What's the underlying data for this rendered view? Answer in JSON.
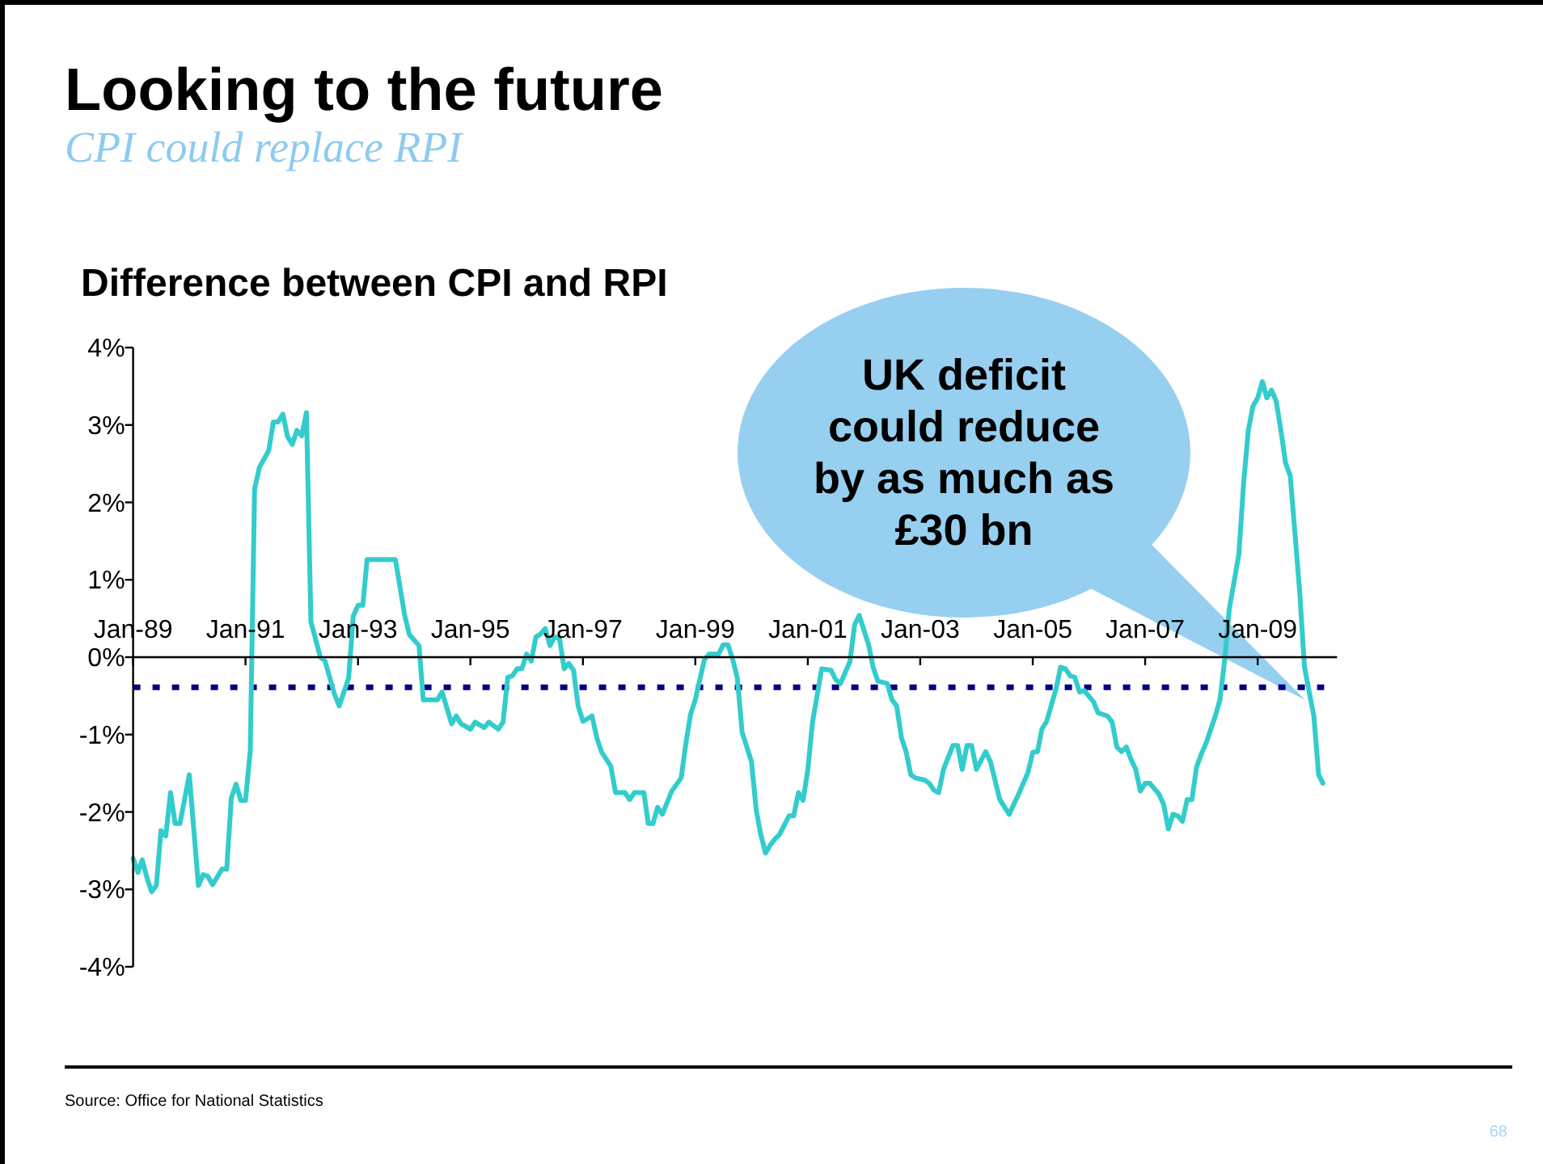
{
  "chart_data": {
    "type": "line",
    "title": "Looking to the future",
    "subtitle": "CPI could replace RPI",
    "ylabel": "Difference between CPI and RPI",
    "annotations": [
      "UK deficit could reduce by as much as £30 bn",
      "Source: Office for National Statistics",
      "68"
    ],
    "x": [
      "1989-01",
      "1989-02",
      "1989-03",
      "1989-04",
      "1989-05",
      "1989-06",
      "1989-07",
      "1989-08",
      "1989-09",
      "1989-10",
      "1989-11",
      "1990-01",
      "1990-03",
      "1990-04",
      "1990-05",
      "1990-06",
      "1990-08",
      "1990-09",
      "1990-10",
      "1990-11",
      "1990-12",
      "1991-01",
      "1991-02",
      "1991-03",
      "1991-04",
      "1991-06",
      "1991-07",
      "1991-08",
      "1991-09",
      "1991-10",
      "1991-11",
      "1991-12",
      "1992-01",
      "1992-02",
      "1992-03",
      "1992-05",
      "1992-06",
      "1992-08",
      "1992-09",
      "1992-11",
      "1992-12",
      "1993-01",
      "1993-02",
      "1993-03",
      "1993-09",
      "1993-11",
      "1993-12",
      "1994-02",
      "1994-03",
      "1994-06",
      "1994-07",
      "1994-09",
      "1994-10",
      "1994-11",
      "1995-01",
      "1995-02",
      "1995-04",
      "1995-05",
      "1995-07",
      "1995-08",
      "1995-09",
      "1995-10",
      "1995-11",
      "1995-12",
      "1996-01",
      "1996-02",
      "1996-03",
      "1996-04",
      "1996-05",
      "1996-06",
      "1996-07",
      "1996-08",
      "1996-09",
      "1996-10",
      "1996-11",
      "1996-12",
      "1997-01",
      "1997-03",
      "1997-04",
      "1997-05",
      "1997-07",
      "1997-08",
      "1997-10",
      "1997-11",
      "1997-12",
      "1998-02",
      "1998-03",
      "1998-04",
      "1998-05",
      "1998-06",
      "1998-08",
      "1998-10",
      "1998-11",
      "1998-12",
      "1999-01",
      "1999-03",
      "1999-04",
      "1999-06",
      "1999-07",
      "1999-08",
      "1999-09",
      "1999-10",
      "1999-11",
      "2000-01",
      "2000-02",
      "2000-03",
      "2000-04",
      "2000-05",
      "2000-06",
      "2000-07",
      "2000-09",
      "2000-10",
      "2000-11",
      "2000-12",
      "2001-01",
      "2001-02",
      "2001-03",
      "2001-04",
      "2001-06",
      "2001-07",
      "2001-08",
      "2001-10",
      "2001-11",
      "2001-12",
      "2002-02",
      "2002-03",
      "2002-04",
      "2002-06",
      "2002-07",
      "2002-08",
      "2002-09",
      "2002-10",
      "2002-11",
      "2002-12",
      "2003-02",
      "2003-03",
      "2003-04",
      "2003-05",
      "2003-06",
      "2003-08",
      "2003-09",
      "2003-10",
      "2003-11",
      "2003-12",
      "2004-01",
      "2004-03",
      "2004-04",
      "2004-06",
      "2004-08",
      "2004-10",
      "2004-12",
      "2005-01",
      "2005-02",
      "2005-03",
      "2005-04",
      "2005-06",
      "2005-07",
      "2005-08",
      "2005-09",
      "2005-10",
      "2005-11",
      "2005-12",
      "2006-02",
      "2006-03",
      "2006-05",
      "2006-06",
      "2006-07",
      "2006-08",
      "2006-09",
      "2006-10",
      "2006-11",
      "2006-12",
      "2007-01",
      "2007-02",
      "2007-04",
      "2007-05",
      "2007-06",
      "2007-07",
      "2007-08",
      "2007-09",
      "2007-10",
      "2007-11",
      "2007-12",
      "2008-01",
      "2008-02",
      "2008-04",
      "2008-05",
      "2008-06",
      "2008-07",
      "2008-09",
      "2008-10",
      "2008-11",
      "2008-12",
      "2009-01",
      "2009-02",
      "2009-03",
      "2009-04",
      "2009-05",
      "2009-06",
      "2009-07",
      "2009-08",
      "2009-10",
      "2009-11",
      "2010-01",
      "2010-02",
      "2010-03"
    ],
    "series": [
      {
        "color": "#33cccc",
        "values": [
          -2.6,
          -2.78,
          -2.62,
          -2.85,
          -3.03,
          -2.95,
          -2.24,
          -2.31,
          -1.75,
          -2.15,
          -2.15,
          -1.52,
          -2.95,
          -2.81,
          -2.83,
          -2.94,
          -2.74,
          -2.74,
          -1.82,
          -1.64,
          -1.85,
          -1.85,
          -1.21,
          2.17,
          2.45,
          2.67,
          3.04,
          3.04,
          3.14,
          2.85,
          2.75,
          2.93,
          2.86,
          3.16,
          0.46,
          0.0,
          -0.05,
          -0.48,
          -0.63,
          -0.27,
          0.53,
          0.67,
          0.67,
          1.26,
          1.26,
          0.53,
          0.29,
          0.15,
          -0.55,
          -0.55,
          -0.45,
          -0.86,
          -0.76,
          -0.86,
          -0.93,
          -0.84,
          -0.91,
          -0.84,
          -0.93,
          -0.84,
          -0.26,
          -0.24,
          -0.15,
          -0.15,
          0.04,
          -0.05,
          0.26,
          0.3,
          0.37,
          0.15,
          0.26,
          0.25,
          -0.15,
          -0.08,
          -0.17,
          -0.63,
          -0.83,
          -0.76,
          -1.04,
          -1.22,
          -1.41,
          -1.75,
          -1.75,
          -1.84,
          -1.75,
          -1.75,
          -2.15,
          -2.15,
          -1.94,
          -2.03,
          -1.73,
          -1.56,
          -1.11,
          -0.74,
          -0.55,
          -0.03,
          0.04,
          0.04,
          0.16,
          0.16,
          -0.03,
          -0.27,
          -0.97,
          -1.35,
          -1.98,
          -2.29,
          -2.53,
          -2.43,
          -2.35,
          -2.29,
          -2.05,
          -2.05,
          -1.75,
          -1.85,
          -1.45,
          -0.83,
          -0.51,
          -0.15,
          -0.17,
          -0.29,
          -0.34,
          -0.06,
          0.42,
          0.54,
          0.15,
          -0.13,
          -0.31,
          -0.34,
          -0.55,
          -0.63,
          -1.04,
          -1.22,
          -1.52,
          -1.56,
          -1.59,
          -1.63,
          -1.72,
          -1.75,
          -1.45,
          -1.14,
          -1.14,
          -1.45,
          -1.14,
          -1.14,
          -1.45,
          -1.22,
          -1.35,
          -1.84,
          -2.03,
          -1.77,
          -1.49,
          -1.23,
          -1.22,
          -0.93,
          -0.83,
          -0.41,
          -0.13,
          -0.15,
          -0.24,
          -0.26,
          -0.45,
          -0.43,
          -0.58,
          -0.72,
          -0.76,
          -0.84,
          -1.16,
          -1.22,
          -1.16,
          -1.32,
          -1.45,
          -1.73,
          -1.63,
          -1.63,
          -1.77,
          -1.9,
          -2.22,
          -2.03,
          -2.05,
          -2.12,
          -1.84,
          -1.84,
          -1.42,
          -1.25,
          -1.11,
          -0.76,
          -0.55,
          -0.03,
          0.63,
          1.33,
          2.23,
          2.93,
          3.24,
          3.35,
          3.56,
          3.35,
          3.45,
          3.31,
          2.93,
          2.51,
          2.34,
          0.84,
          -0.13,
          -0.76,
          -1.52,
          -1.63
        ]
      }
    ],
    "xlim": [
      "1989-01",
      "2010-06"
    ],
    "xticks": [
      {
        "value": "1989-01",
        "label": "Jan-89"
      },
      {
        "value": "1991-01",
        "label": "Jan-91"
      },
      {
        "value": "1993-01",
        "label": "Jan-93"
      },
      {
        "value": "1995-01",
        "label": "Jan-95"
      },
      {
        "value": "1997-01",
        "label": "Jan-97"
      },
      {
        "value": "1999-01",
        "label": "Jan-99"
      },
      {
        "value": "2001-01",
        "label": "Jan-01"
      },
      {
        "value": "2003-01",
        "label": "Jan-03"
      },
      {
        "value": "2005-01",
        "label": "Jan-05"
      },
      {
        "value": "2007-01",
        "label": "Jan-07"
      },
      {
        "value": "2009-01",
        "label": "Jan-09"
      }
    ],
    "ylim": [
      -4,
      4
    ],
    "yticks": [
      {
        "value": -4,
        "label": "-4%"
      },
      {
        "value": -3,
        "label": "-3%"
      },
      {
        "value": -2,
        "label": "-2%"
      },
      {
        "value": -1,
        "label": "-1%"
      },
      {
        "value": 0,
        "label": "0%"
      },
      {
        "value": 1,
        "label": "1%"
      },
      {
        "value": 2,
        "label": "2%"
      },
      {
        "value": 3,
        "label": "3%"
      },
      {
        "value": 4,
        "label": "4%"
      }
    ],
    "ref_lines": [
      {
        "axis": "y",
        "value": -0.39,
        "color": "#000080",
        "line_style": "dotted"
      }
    ]
  }
}
